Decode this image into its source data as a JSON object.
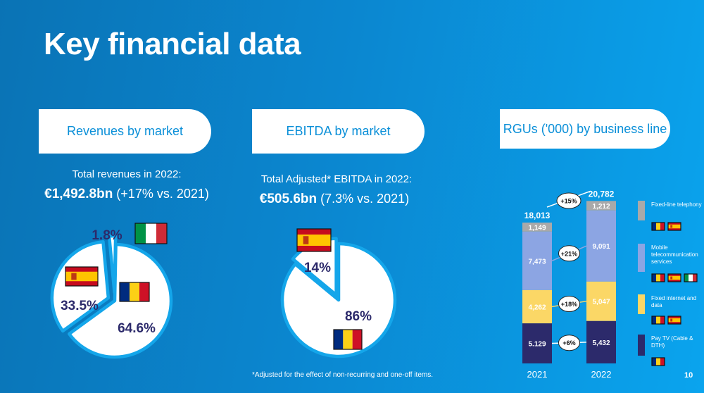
{
  "page": {
    "title": "Key financial data",
    "page_number": "10",
    "footnote": "*Adjusted for the effect of non-recurring and one-off items."
  },
  "colors": {
    "pie_border": "#14a6ea",
    "pie_fill": "#ffffff",
    "label": "#2c2a6b",
    "pay_tv": "#2c2a6b",
    "fixed_internet": "#fbd766",
    "mobile": "#8ca5e3",
    "fixed_line": "#a9a9a9"
  },
  "revenues": {
    "header": "Revenues by market",
    "subtitle": "Total revenues in 2022:",
    "amount": "€1,492.8bn",
    "change": " (+17% vs. 2021)"
  },
  "ebitda": {
    "header": "EBITDA by market",
    "subtitle": "Total Adjusted* EBITDA in 2022:",
    "amount": "€505.6bn",
    "change": " (7.3% vs. 2021)"
  },
  "rgus": {
    "header": "RGUs ('000) by business line",
    "legend": [
      {
        "label": "Fixed-line telephony",
        "flags": [
          "romania-flag-icon",
          "spain-flag-icon"
        ]
      },
      {
        "label": "Mobile telecommunication services",
        "flags": [
          "romania-flag-icon",
          "spain-flag-icon",
          "italy-flag-icon"
        ]
      },
      {
        "label": "Fixed internet and data",
        "flags": [
          "romania-flag-icon",
          "spain-flag-icon"
        ]
      },
      {
        "label": "Pay TV (Cable & DTH)",
        "flags": [
          "romania-flag-icon"
        ]
      }
    ]
  },
  "chart_data": [
    {
      "type": "pie",
      "slices": [
        {
          "label": "64.6%",
          "value": 64.6,
          "flag": "romania-flag-icon"
        },
        {
          "label": "33.5%",
          "value": 33.5,
          "flag": "spain-flag-icon"
        },
        {
          "label": "1.8%",
          "value": 1.8,
          "flag": "italy-flag-icon"
        }
      ]
    },
    {
      "type": "pie",
      "slices": [
        {
          "label": "86%",
          "value": 86,
          "flag": "romania-flag-icon"
        },
        {
          "label": "14%",
          "value": 14,
          "flag": "spain-flag-icon"
        }
      ]
    },
    {
      "type": "bar",
      "stacked": true,
      "categories": [
        "2021",
        "2022"
      ],
      "totals": [
        "18,013",
        "20,782"
      ],
      "series": [
        {
          "name": "Pay TV (Cable & DTH)",
          "values": [
            5129,
            5432
          ],
          "labels": [
            "5.129",
            "5,432"
          ],
          "growth": "+6%"
        },
        {
          "name": "Fixed internet and data",
          "values": [
            4262,
            5047
          ],
          "labels": [
            "4,262",
            "5,047"
          ],
          "growth": "+18%"
        },
        {
          "name": "Mobile telecommunication services",
          "values": [
            7473,
            9091
          ],
          "labels": [
            "7,473",
            "9,091"
          ],
          "growth": "+21%"
        },
        {
          "name": "Fixed-line telephony",
          "values": [
            1149,
            1212
          ],
          "labels": [
            "1,149",
            "1,212"
          ]
        }
      ],
      "total_growth": "+15%"
    }
  ]
}
